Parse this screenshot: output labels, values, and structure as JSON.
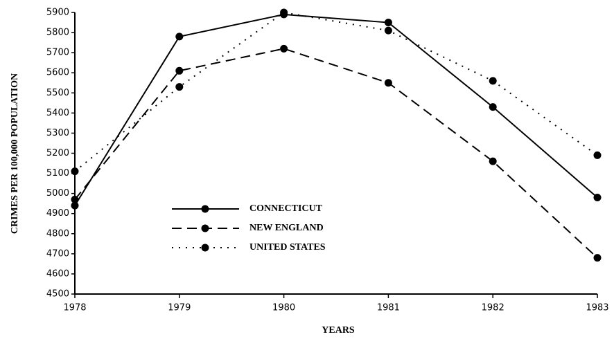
{
  "chart_data": {
    "type": "line",
    "x_label": "YEARS",
    "y_label": "CRIMES PER 100,000 POPULATION",
    "x": [
      1978,
      1979,
      1980,
      1981,
      1982,
      1983
    ],
    "xlim": [
      1978,
      1983
    ],
    "xticks": [
      1978,
      1979,
      1980,
      1981,
      1982,
      1983
    ],
    "ylim": [
      4500,
      5900
    ],
    "yticks": [
      4500,
      4600,
      4700,
      4800,
      4900,
      5000,
      5100,
      5200,
      5300,
      5400,
      5500,
      5600,
      5700,
      5800,
      5900
    ],
    "series": [
      {
        "name": "CONNECTICUT",
        "color": "#000000",
        "line_style": "solid",
        "values": [
          4940,
          5780,
          5890,
          5850,
          5430,
          4980
        ]
      },
      {
        "name": "NEW ENGLAND",
        "color": "#000000",
        "line_style": "dashed",
        "values": [
          4970,
          5610,
          5720,
          5550,
          5160,
          4680
        ]
      },
      {
        "name": "UNITED STATES",
        "color": "#000000",
        "line_style": "dotted",
        "values": [
          5110,
          5530,
          5900,
          5810,
          5560,
          5190
        ]
      }
    ]
  }
}
